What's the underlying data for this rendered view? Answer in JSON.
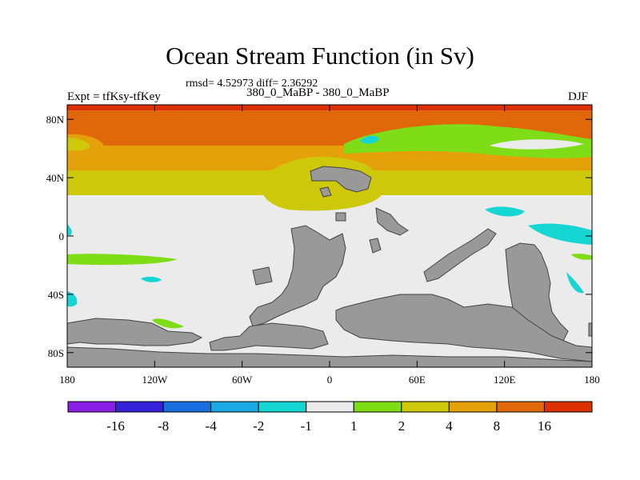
{
  "chart_data": {
    "type": "heatmap",
    "title": "Ocean Stream Function (in Sv)",
    "stats": "rmsd= 4.52973 diff= 2.36292",
    "subtitle": "380_0_MaBP - 380_0_MaBP",
    "left_label": "Expt = tfKsy-tfKey",
    "right_label": "DJF",
    "x_ticks": [
      "180",
      "120W",
      "60W",
      "0",
      "60E",
      "120E",
      "180"
    ],
    "x_tick_values": [
      -180,
      -120,
      -60,
      0,
      60,
      120,
      180
    ],
    "y_ticks": [
      "80N",
      "40N",
      "0",
      "40S",
      "80S"
    ],
    "y_tick_values": [
      80,
      40,
      0,
      -40,
      -80
    ],
    "xlim": [
      -180,
      180
    ],
    "ylim": [
      -90,
      90
    ],
    "colorbar": {
      "levels": [
        "-16",
        "-8",
        "-4",
        "-2",
        "-1",
        "1",
        "2",
        "4",
        "8",
        "16"
      ],
      "colors": [
        "#8a1ee6",
        "#3522d8",
        "#1a6fe0",
        "#1aa9e3",
        "#16d6d3",
        "#ebebeb",
        "#7fdd18",
        "#cdc90a",
        "#e5a10a",
        "#e0670a",
        "#dc3105"
      ]
    },
    "land_color": "#999999",
    "latitude_bands": [
      {
        "lat": [
          86,
          90
        ],
        "range": "> 16",
        "color": "#dc3105"
      },
      {
        "lat": [
          62,
          86
        ],
        "range": "8 to 16",
        "color": "#e0670a"
      },
      {
        "lat": [
          45,
          62
        ],
        "range": "4 to 8",
        "color": "#e5a10a"
      },
      {
        "lat": [
          28,
          45
        ],
        "range": "2 to 4",
        "color": "#cdc90a"
      },
      {
        "lat": [
          -90,
          28
        ],
        "range": "-1 to 1",
        "color": "#ebebeb"
      }
    ]
  }
}
